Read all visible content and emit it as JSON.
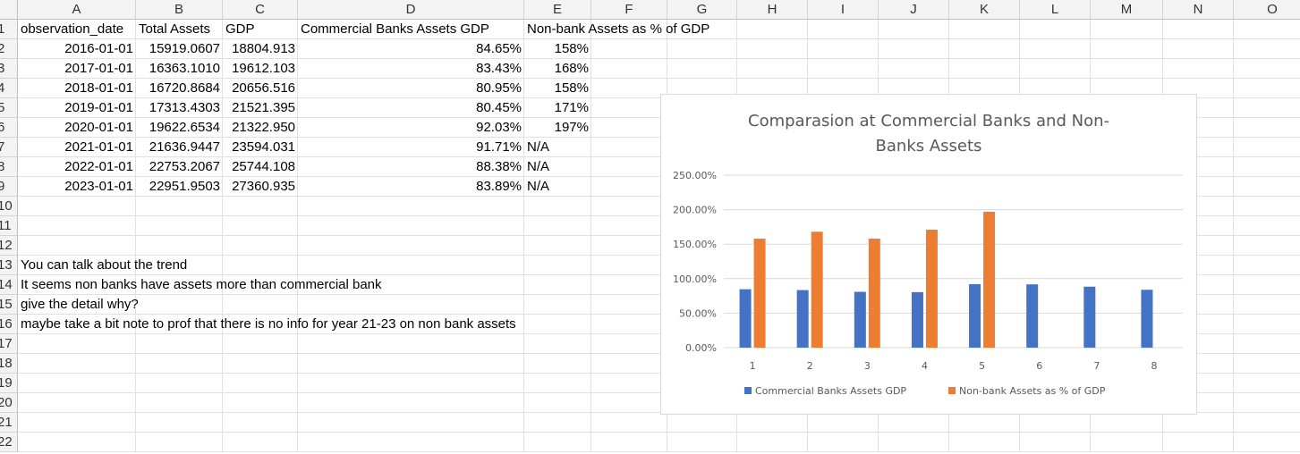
{
  "columns": [
    "A",
    "B",
    "C",
    "D",
    "E",
    "F",
    "G",
    "H",
    "I",
    "J",
    "K",
    "L",
    "M",
    "N",
    "O"
  ],
  "rows": [
    "1",
    "2",
    "3",
    "4",
    "5",
    "6",
    "7",
    "8",
    "9",
    "10",
    "11",
    "12",
    "13",
    "14",
    "15",
    "16",
    "17",
    "18",
    "19",
    "20",
    "21",
    "22"
  ],
  "table": {
    "headers": [
      "observation_date",
      "Total Assets",
      "GDP",
      "Commercial Banks Assets GDP",
      "Non-bank Assets as % of GDP"
    ],
    "data": [
      [
        "2016-01-01",
        "15919.0607",
        "18804.913",
        "84.65%",
        "158%"
      ],
      [
        "2017-01-01",
        "16363.1010",
        "19612.103",
        "83.43%",
        "168%"
      ],
      [
        "2018-01-01",
        "16720.8684",
        "20656.516",
        "80.95%",
        "158%"
      ],
      [
        "2019-01-01",
        "17313.4303",
        "21521.395",
        "80.45%",
        "171%"
      ],
      [
        "2020-01-01",
        "19622.6534",
        "21322.950",
        "92.03%",
        "197%"
      ],
      [
        "2021-01-01",
        "21636.9447",
        "23594.031",
        "91.71%",
        "N/A"
      ],
      [
        "2022-01-01",
        "22753.2067",
        "25744.108",
        "88.38%",
        "N/A"
      ],
      [
        "2023-01-01",
        "22951.9503",
        "27360.935",
        "83.89%",
        "N/A"
      ]
    ]
  },
  "notes": [
    "You can talk about the trend",
    "It seems non banks have assets more than commercial bank",
    "give the detail why?",
    "maybe take a bit note to prof that there is no info for year 21-23 on non bank assets"
  ],
  "colors": {
    "series1": "#4472c4",
    "series2": "#ed7d31",
    "grid": "#d9d9d9",
    "header_bg": "#f3f3f3"
  },
  "chart_data": {
    "type": "bar",
    "title": "Comparasion at Commercial Banks and Non-Banks Assets",
    "title_lines": [
      "Comparasion at Commercial Banks and Non-",
      "Banks Assets"
    ],
    "categories": [
      "1",
      "2",
      "3",
      "4",
      "5",
      "6",
      "7",
      "8"
    ],
    "series": [
      {
        "name": "Commercial Banks Assets GDP",
        "values": [
          84.65,
          83.43,
          80.95,
          80.45,
          92.03,
          91.71,
          88.38,
          83.89
        ]
      },
      {
        "name": "Non-bank Assets as % of GDP",
        "values": [
          158,
          168,
          158,
          171,
          197,
          null,
          null,
          null
        ]
      }
    ],
    "yticks": [
      "0.00%",
      "50.00%",
      "100.00%",
      "150.00%",
      "200.00%",
      "250.00%"
    ],
    "ylim": [
      0,
      250
    ],
    "grid": true,
    "legend_position": "bottom"
  }
}
